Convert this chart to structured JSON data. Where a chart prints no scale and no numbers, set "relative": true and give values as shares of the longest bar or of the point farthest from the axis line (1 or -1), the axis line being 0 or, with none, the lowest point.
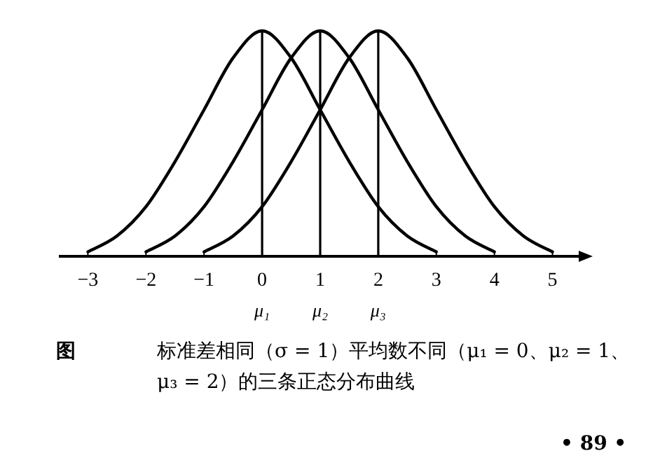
{
  "chart_data": {
    "type": "line",
    "relative": true,
    "xlim": [
      -3.5,
      5.5
    ],
    "xticks": [
      -3,
      -2,
      -1,
      0,
      1,
      2,
      3,
      4,
      5
    ],
    "marker": "none",
    "line_style": "solid",
    "grid": false,
    "series": [
      {
        "color": "#000000",
        "x": [
          -3,
          -2.5,
          -2,
          -1.5,
          -1,
          -0.5,
          0,
          0.5,
          1,
          1.5,
          2,
          2.5,
          3
        ],
        "values": [
          0.02,
          0.09,
          0.22,
          0.42,
          0.65,
          0.88,
          1,
          0.88,
          0.65,
          0.42,
          0.22,
          0.09,
          0.02
        ]
      },
      {
        "color": "#000000",
        "x": [
          -2,
          -1.5,
          -1,
          -0.5,
          0,
          0.5,
          1,
          1.5,
          2,
          2.5,
          3,
          3.5,
          4
        ],
        "values": [
          0.02,
          0.09,
          0.22,
          0.42,
          0.65,
          0.88,
          1,
          0.88,
          0.65,
          0.42,
          0.22,
          0.09,
          0.02
        ]
      },
      {
        "color": "#000000",
        "x": [
          -1,
          -0.5,
          0,
          0.5,
          1,
          1.5,
          2,
          2.5,
          3,
          3.5,
          4,
          4.5,
          5
        ],
        "values": [
          0.02,
          0.09,
          0.22,
          0.42,
          0.65,
          0.88,
          1,
          0.88,
          0.65,
          0.42,
          0.22,
          0.09,
          0.02
        ]
      }
    ],
    "ref_lines": [
      {
        "axis": "x",
        "value": 0,
        "label": "μ₁",
        "color": "#000000"
      },
      {
        "axis": "x",
        "value": 1,
        "label": "μ₂",
        "color": "#000000"
      },
      {
        "axis": "x",
        "value": 2,
        "label": "μ₃",
        "color": "#000000"
      }
    ],
    "annotations": [
      "图",
      "标准差相同（σ = 1）平均数不同（μ₁ = 0、μ₂ = 1、μ₃ = 2）的三条正态分布曲线",
      "• 89 •"
    ]
  }
}
